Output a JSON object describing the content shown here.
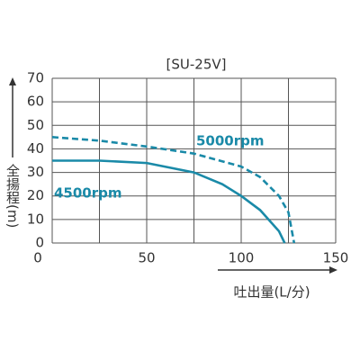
{
  "chart_data": {
    "type": "line",
    "title": "[SU-25V]",
    "x_label": "吐出量(L/分)",
    "y_label": "全揚程(m)",
    "xlim": [
      0,
      150
    ],
    "ylim": [
      0,
      70
    ],
    "xticks": [
      0,
      50,
      100,
      150
    ],
    "x_minor_ticks": [
      25,
      75,
      125
    ],
    "yticks": [
      0,
      10,
      20,
      30,
      40,
      50,
      60,
      70
    ],
    "grid": true,
    "series": [
      {
        "name": "5000rpm",
        "color": "#1a8aa8",
        "dashed": true,
        "x": [
          0,
          25,
          50,
          75,
          100,
          110,
          120,
          125,
          128
        ],
        "values": [
          45,
          43.5,
          41,
          38,
          32.5,
          28,
          20,
          13,
          0
        ]
      },
      {
        "name": "4500rpm",
        "color": "#1a8aa8",
        "dashed": false,
        "x": [
          0,
          25,
          50,
          75,
          90,
          100,
          110,
          120,
          123
        ],
        "values": [
          35,
          35,
          34,
          30,
          25,
          20,
          14,
          5,
          0
        ]
      }
    ]
  }
}
